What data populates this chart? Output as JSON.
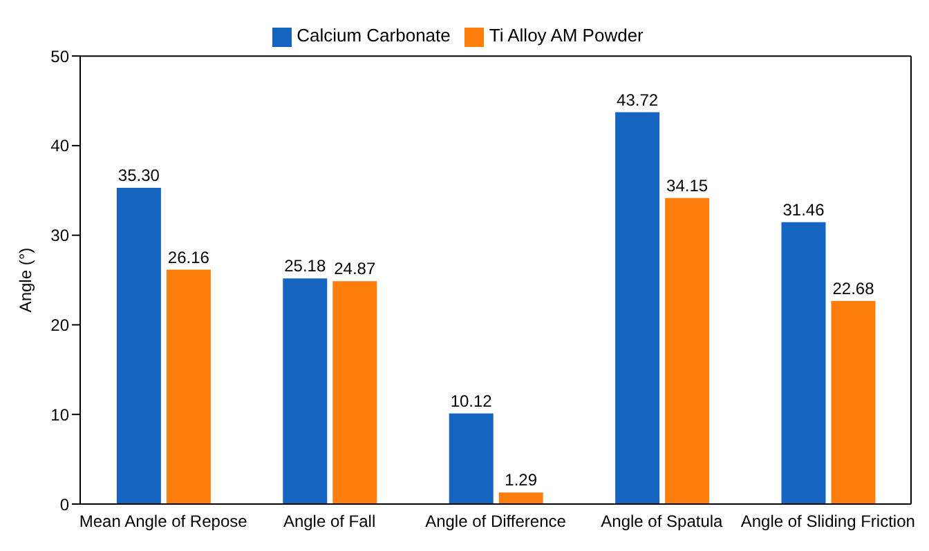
{
  "chart_data": {
    "type": "bar",
    "categories": [
      "Mean Angle of Repose",
      "Angle of Fall",
      "Angle of Difference",
      "Angle of Spatula",
      "Angle of Sliding Friction"
    ],
    "series": [
      {
        "name": "Calcium Carbonate",
        "color": "#1565c0",
        "values": [
          35.3,
          25.18,
          10.12,
          43.72,
          31.46
        ],
        "value_labels": [
          "35.30",
          "25.18",
          "10.12",
          "43.72",
          "31.46"
        ]
      },
      {
        "name": "Ti Alloy AM Powder",
        "color": "#ff7f0e",
        "values": [
          26.16,
          24.87,
          1.29,
          34.15,
          22.68
        ],
        "value_labels": [
          "26.16",
          "24.87",
          "1.29",
          "34.15",
          "22.68"
        ]
      }
    ],
    "ylabel": "Angle (°)",
    "ylim": [
      0,
      50
    ],
    "yticks": [
      0,
      10,
      20,
      30,
      40,
      50
    ],
    "grid": false,
    "legend": "top"
  }
}
